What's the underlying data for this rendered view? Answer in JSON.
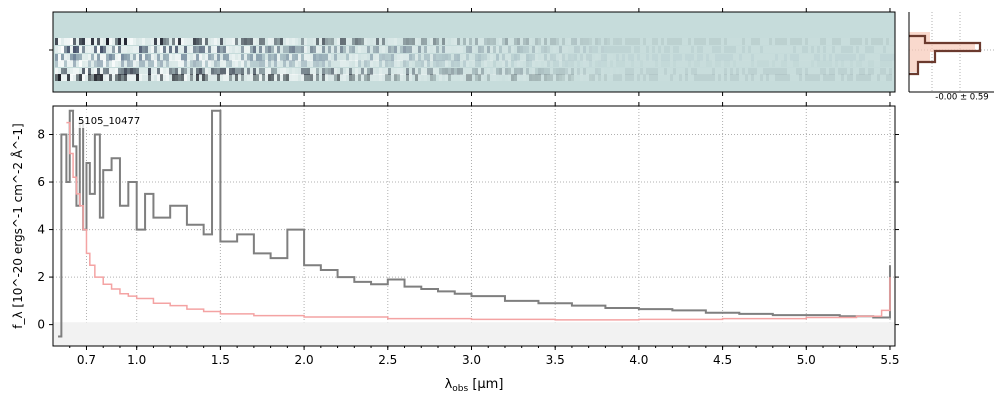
{
  "chart_data": {
    "type": "line",
    "label": "5105_10477",
    "xlabel_main": "λ",
    "xlabel_sub": "obs",
    "xlabel_unit": " [μm]",
    "ylabel": "f_λ [10^-20 ergs^-1 cm^-2 Å^-1]",
    "ylim": [
      -0.9,
      9.2
    ],
    "y_ticks": [
      0,
      2,
      4,
      6,
      8
    ],
    "x_ticks": [
      {
        "label": "0.7",
        "value": 0.7
      },
      {
        "label": "1.0",
        "value": 1.0
      },
      {
        "label": "1.5",
        "value": 1.5
      },
      {
        "label": "2.0",
        "value": 2.0
      },
      {
        "label": "2.5",
        "value": 2.5
      },
      {
        "label": "3.0",
        "value": 3.0
      },
      {
        "label": "3.5",
        "value": 3.5
      },
      {
        "label": "4.0",
        "value": 4.0
      },
      {
        "label": "4.5",
        "value": 4.5
      },
      {
        "label": "5.0",
        "value": 5.0
      },
      {
        "label": "5.5",
        "value": 5.5
      }
    ],
    "xlim": [
      0.5,
      5.53
    ],
    "grid": true,
    "series": [
      {
        "role": "flux",
        "color": "#7f7f7f",
        "x": [
          0.53,
          0.55,
          0.58,
          0.6,
          0.62,
          0.64,
          0.66,
          0.68,
          0.7,
          0.72,
          0.75,
          0.78,
          0.8,
          0.85,
          0.9,
          0.95,
          1.0,
          1.05,
          1.1,
          1.2,
          1.3,
          1.4,
          1.45,
          1.5,
          1.6,
          1.7,
          1.8,
          1.9,
          2.0,
          2.1,
          2.2,
          2.3,
          2.4,
          2.5,
          2.6,
          2.7,
          2.8,
          2.9,
          3.0,
          3.2,
          3.4,
          3.6,
          3.8,
          4.0,
          4.2,
          4.4,
          4.6,
          4.8,
          5.0,
          5.2,
          5.4,
          5.5
        ],
        "y": [
          -0.5,
          8.0,
          6.0,
          9.0,
          7.5,
          5.0,
          8.5,
          4.0,
          6.8,
          5.5,
          8.0,
          4.5,
          6.5,
          7.0,
          5.0,
          6.0,
          4.0,
          5.5,
          4.5,
          5.0,
          4.2,
          3.8,
          9.0,
          3.5,
          3.8,
          3.0,
          2.8,
          4.0,
          2.5,
          2.3,
          2.0,
          1.8,
          1.7,
          1.9,
          1.6,
          1.5,
          1.4,
          1.3,
          1.2,
          1.0,
          0.9,
          0.8,
          0.7,
          0.65,
          0.6,
          0.5,
          0.45,
          0.4,
          0.4,
          0.35,
          0.3,
          2.5
        ]
      },
      {
        "role": "error",
        "color": "#f4a3a3",
        "x": [
          0.58,
          0.6,
          0.62,
          0.64,
          0.66,
          0.68,
          0.7,
          0.72,
          0.75,
          0.8,
          0.85,
          0.9,
          0.95,
          1.0,
          1.1,
          1.2,
          1.3,
          1.4,
          1.5,
          1.7,
          2.0,
          2.5,
          3.0,
          3.5,
          4.0,
          4.5,
          5.0,
          5.3,
          5.45,
          5.5
        ],
        "y": [
          8.5,
          7.2,
          6.2,
          5.5,
          5.0,
          4.0,
          3.0,
          2.5,
          2.0,
          1.7,
          1.5,
          1.3,
          1.2,
          1.1,
          0.9,
          0.8,
          0.65,
          0.55,
          0.45,
          0.38,
          0.32,
          0.25,
          0.22,
          0.2,
          0.22,
          0.25,
          0.3,
          0.35,
          0.6,
          2.0
        ]
      }
    ],
    "side_panel_label": "-0.00 ± 0.59"
  }
}
